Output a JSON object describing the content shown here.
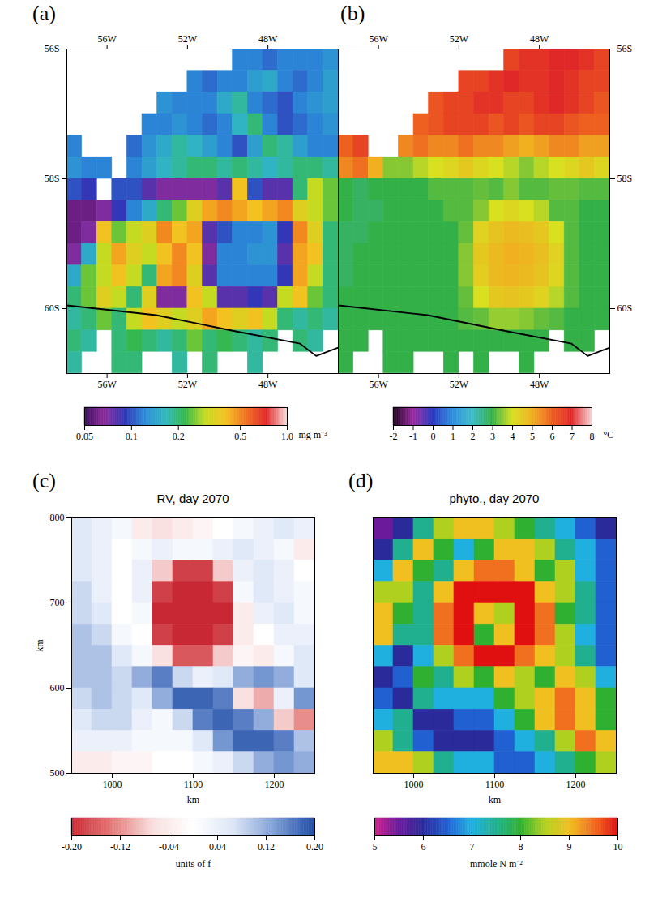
{
  "chart_data": [
    {
      "type": "heatmap",
      "panel_label": "(a)",
      "x": [
        -57.625,
        -56.875,
        -56.125,
        -55.375,
        -54.625,
        -53.875,
        -53.125,
        -52.375,
        -51.625,
        -50.875,
        -50.125,
        -49.375,
        -48.625,
        -47.875,
        -47.125,
        -46.375,
        -45.625,
        -44.875
      ],
      "y": [
        -56.17,
        -56.5,
        -56.83,
        -57.17,
        -57.5,
        -57.83,
        -58.17,
        -58.5,
        -58.83,
        -59.17,
        -59.5,
        -59.83,
        -60.17,
        -60.5,
        -60.83
      ],
      "values": [
        [
          null,
          null,
          null,
          null,
          null,
          null,
          null,
          null,
          null,
          null,
          null,
          0.12,
          0.12,
          0.11,
          0.12,
          0.12,
          0.12,
          0.13
        ],
        [
          null,
          null,
          null,
          null,
          null,
          null,
          null,
          null,
          0.12,
          0.11,
          0.12,
          0.12,
          0.14,
          0.15,
          0.12,
          0.11,
          0.12,
          0.14
        ],
        [
          null,
          null,
          null,
          null,
          null,
          null,
          0.13,
          0.12,
          0.12,
          0.12,
          0.15,
          0.18,
          0.12,
          0.11,
          0.1,
          0.12,
          0.13,
          0.14
        ],
        [
          null,
          null,
          null,
          null,
          null,
          0.12,
          0.12,
          0.13,
          0.12,
          0.11,
          0.12,
          0.16,
          0.2,
          0.12,
          0.1,
          0.11,
          0.12,
          0.13
        ],
        [
          0.12,
          null,
          null,
          null,
          0.11,
          0.13,
          0.15,
          0.18,
          0.16,
          0.14,
          0.12,
          0.1,
          0.14,
          0.2,
          0.18,
          0.14,
          0.12,
          0.12
        ],
        [
          0.13,
          0.12,
          0.12,
          null,
          0.12,
          0.14,
          0.16,
          0.18,
          0.2,
          0.2,
          0.18,
          0.2,
          0.18,
          0.16,
          0.18,
          0.2,
          0.2,
          0.18
        ],
        [
          0.1,
          0.09,
          null,
          0.1,
          0.1,
          0.08,
          0.07,
          0.07,
          0.07,
          0.07,
          0.08,
          0.4,
          0.1,
          0.08,
          0.08,
          0.2,
          0.3,
          0.25
        ],
        [
          0.06,
          0.06,
          0.07,
          0.09,
          0.12,
          0.15,
          0.2,
          0.25,
          0.35,
          0.45,
          0.5,
          0.45,
          0.4,
          0.45,
          0.5,
          0.35,
          0.3,
          0.25
        ],
        [
          0.06,
          0.07,
          0.4,
          0.25,
          0.3,
          0.35,
          0.5,
          0.4,
          0.45,
          0.08,
          0.1,
          0.12,
          0.12,
          0.13,
          0.09,
          0.5,
          0.35,
          0.2
        ],
        [
          0.07,
          0.15,
          0.3,
          0.45,
          0.35,
          0.3,
          0.4,
          0.5,
          0.4,
          0.07,
          0.12,
          0.12,
          0.13,
          0.13,
          0.08,
          0.45,
          0.4,
          0.2
        ],
        [
          0.15,
          0.25,
          0.3,
          0.4,
          0.3,
          0.2,
          0.45,
          0.5,
          0.35,
          0.08,
          0.12,
          0.12,
          0.12,
          0.12,
          0.09,
          0.45,
          0.3,
          0.2
        ],
        [
          0.2,
          0.25,
          0.35,
          0.3,
          0.2,
          0.35,
          0.07,
          0.07,
          0.4,
          0.3,
          0.08,
          0.08,
          0.09,
          0.08,
          0.3,
          0.4,
          0.25,
          0.2
        ],
        [
          0.18,
          0.2,
          0.25,
          0.2,
          0.3,
          0.4,
          0.35,
          0.3,
          0.35,
          0.45,
          0.4,
          0.35,
          0.4,
          0.3,
          0.2,
          0.18,
          0.2,
          0.18
        ],
        [
          0.2,
          0.18,
          null,
          0.2,
          0.22,
          0.2,
          0.18,
          0.2,
          0.25,
          0.2,
          0.22,
          0.2,
          0.18,
          0.2,
          null,
          0.2,
          0.18,
          null
        ],
        [
          0.18,
          null,
          null,
          0.2,
          0.2,
          null,
          null,
          0.18,
          null,
          0.2,
          null,
          null,
          0.18,
          null,
          null,
          null,
          null,
          null
        ]
      ],
      "xlim": [
        -58,
        -44.5
      ],
      "ylim": [
        -61,
        -56
      ],
      "xticks": [
        {
          "value": -56,
          "label": "56W"
        },
        {
          "value": -52,
          "label": "52W"
        },
        {
          "value": -48,
          "label": "48W"
        }
      ],
      "yticks": [
        {
          "value": -56,
          "label": "56S"
        },
        {
          "value": -58,
          "label": "58S"
        },
        {
          "value": -60,
          "label": "60S"
        }
      ],
      "line": {
        "x": [
          -58,
          -53.56,
          -49.6,
          -46.4,
          -45.6,
          -44.5
        ],
        "y": [
          -59.95,
          -60.1,
          -60.35,
          -60.54,
          -60.73,
          -60.6
        ],
        "color": "black"
      },
      "colorbar": {
        "range": [
          0.05,
          1
        ],
        "log": true,
        "label": "mg m⁻³",
        "ticks": [
          0.05,
          0.1,
          0.2,
          0.5,
          {
            "value": 1,
            "label": "1.0"
          }
        ]
      }
    },
    {
      "type": "heatmap",
      "panel_label": "(b)",
      "x": [
        -57.625,
        -56.875,
        -56.125,
        -55.375,
        -54.625,
        -53.875,
        -53.125,
        -52.375,
        -51.625,
        -50.875,
        -50.125,
        -49.375,
        -48.625,
        -47.875,
        -47.125,
        -46.375,
        -45.625,
        -44.875
      ],
      "y": [
        -56.17,
        -56.5,
        -56.83,
        -57.17,
        -57.5,
        -57.83,
        -58.17,
        -58.5,
        -58.83,
        -59.17,
        -59.5,
        -59.83,
        -60.17,
        -60.5,
        -60.83
      ],
      "values": [
        [
          null,
          null,
          null,
          null,
          null,
          null,
          null,
          null,
          null,
          null,
          null,
          6.5,
          6.8,
          6.8,
          7,
          7,
          6.8,
          6.5
        ],
        [
          null,
          null,
          null,
          null,
          null,
          null,
          null,
          null,
          6.5,
          6.5,
          6.8,
          7,
          6.8,
          6.8,
          7,
          6.8,
          6.5,
          6.5
        ],
        [
          null,
          null,
          null,
          null,
          null,
          null,
          6.2,
          6.5,
          6.5,
          6.8,
          6.8,
          6.5,
          6.5,
          6.8,
          7,
          6.8,
          6.5,
          6.2
        ],
        [
          null,
          null,
          null,
          null,
          null,
          6,
          6.2,
          6.5,
          6.5,
          6.5,
          6.2,
          6.5,
          6.2,
          6.5,
          6.5,
          6.2,
          6,
          6
        ],
        [
          6,
          6.5,
          null,
          null,
          5.5,
          5.8,
          5.5,
          5.5,
          5.8,
          5.5,
          5.5,
          5.2,
          5,
          5.2,
          5.5,
          5.5,
          5.2,
          5.2
        ],
        [
          5.5,
          5.8,
          5,
          3.5,
          3.5,
          3.8,
          4,
          4.2,
          4.5,
          4.2,
          4,
          3.8,
          3.5,
          3.8,
          4,
          4.2,
          4.5,
          4.2
        ],
        [
          3,
          2.8,
          3,
          3,
          3,
          3,
          3.2,
          3.2,
          3.2,
          3.3,
          3.2,
          3.5,
          3.2,
          3.2,
          3.3,
          3.3,
          3.2,
          3.2
        ],
        [
          3,
          2.8,
          2.8,
          3,
          3,
          3,
          3,
          3.2,
          3.2,
          3.5,
          4,
          4.2,
          4,
          3.8,
          3.2,
          3.2,
          3,
          3
        ],
        [
          2.8,
          2.8,
          3,
          3,
          3,
          3,
          3,
          3,
          3.3,
          4.3,
          4.6,
          4.8,
          4.7,
          4.5,
          4,
          3.2,
          3,
          3
        ],
        [
          2.8,
          3,
          3,
          3,
          3,
          3,
          3,
          3,
          3.5,
          4.5,
          4.8,
          5,
          4.9,
          4.7,
          4.3,
          3.2,
          3,
          3
        ],
        [
          2.8,
          3,
          3,
          3,
          3,
          3,
          3,
          3,
          3.5,
          4.4,
          4.8,
          4.9,
          4.8,
          4.6,
          4.2,
          3.2,
          3,
          3
        ],
        [
          3,
          3,
          3,
          3,
          3,
          3,
          3,
          3,
          3.3,
          4,
          4.5,
          4.6,
          4.5,
          4.3,
          3.8,
          3.2,
          3,
          3
        ],
        [
          3,
          3,
          3,
          3,
          3,
          3,
          3,
          3,
          3.2,
          3.3,
          3.6,
          3.6,
          3.5,
          3.3,
          3.2,
          3,
          3,
          3
        ],
        [
          3,
          3,
          null,
          3,
          3,
          3,
          3,
          3,
          3,
          3,
          3,
          3,
          3,
          3,
          null,
          3,
          3,
          null
        ],
        [
          3,
          null,
          null,
          3,
          3,
          null,
          null,
          3,
          null,
          3,
          null,
          null,
          3,
          null,
          null,
          null,
          null,
          null
        ]
      ],
      "xlim": [
        -58,
        -44.5
      ],
      "ylim": [
        -61,
        -56
      ],
      "xticks": [
        {
          "value": -56,
          "label": "56W"
        },
        {
          "value": -52,
          "label": "52W"
        },
        {
          "value": -48,
          "label": "48W"
        }
      ],
      "yticks": [
        {
          "value": -56,
          "label": "56S"
        },
        {
          "value": -58,
          "label": "58S"
        },
        {
          "value": -60,
          "label": "60S"
        }
      ],
      "line": {
        "x": [
          -58,
          -53.56,
          -49.6,
          -46.4,
          -45.6,
          -44.5
        ],
        "y": [
          -59.95,
          -60.1,
          -60.35,
          -60.54,
          -60.73,
          -60.6
        ],
        "color": "black"
      },
      "colorbar": {
        "range": [
          -2,
          8
        ],
        "label": "°C",
        "ticks": [
          -2,
          -1,
          0,
          1,
          2,
          3,
          4,
          5,
          6,
          7,
          8
        ]
      }
    },
    {
      "type": "heatmap",
      "panel_label": "(c)",
      "title": "RV, day 2070",
      "xlabel": "km",
      "ylabel": "km",
      "x": [
        962.5,
        987.5,
        1012.5,
        1037.5,
        1062.5,
        1087.5,
        1112.5,
        1137.5,
        1162.5,
        1187.5,
        1212.5,
        1237.5
      ],
      "y": [
        787.5,
        762.5,
        737.5,
        712.5,
        687.5,
        662.5,
        637.5,
        612.5,
        587.5,
        562.5,
        537.5,
        512.5
      ],
      "values": [
        [
          0.06,
          0.04,
          0.02,
          -0.04,
          -0.06,
          -0.04,
          -0.02,
          0,
          0.02,
          0.04,
          0.06,
          0.04
        ],
        [
          0.06,
          0.04,
          0,
          0.02,
          0.04,
          0.02,
          0.02,
          0.04,
          0.06,
          0.04,
          0.02,
          -0.04
        ],
        [
          0.06,
          0.04,
          0,
          0.04,
          -0.08,
          -0.18,
          -0.18,
          -0.08,
          0.04,
          0.06,
          0.04,
          0
        ],
        [
          0.08,
          0.04,
          0,
          0.04,
          -0.18,
          -0.2,
          -0.2,
          -0.18,
          0.02,
          0.06,
          0.04,
          0.02
        ],
        [
          0.08,
          0.06,
          0,
          0.02,
          -0.2,
          -0.2,
          -0.2,
          -0.2,
          -0.04,
          0.04,
          0.06,
          0.02
        ],
        [
          0.1,
          0.08,
          0.02,
          0,
          -0.18,
          -0.2,
          -0.2,
          -0.18,
          -0.04,
          0,
          0.04,
          0.04
        ],
        [
          0.1,
          0.1,
          0.06,
          0.02,
          -0.06,
          -0.16,
          -0.16,
          -0.08,
          -0.02,
          -0.04,
          0.02,
          0.06
        ],
        [
          0.1,
          0.1,
          0.08,
          0.12,
          0.16,
          0.08,
          0.04,
          0.06,
          0.12,
          0.14,
          0.12,
          0.06
        ],
        [
          0.08,
          0.1,
          0.08,
          0.06,
          0.12,
          0.18,
          0.18,
          0.16,
          -0.06,
          -0.1,
          0.04,
          0.14
        ],
        [
          0.06,
          0.08,
          0.08,
          0.04,
          0.02,
          0.08,
          0.16,
          0.18,
          0.16,
          0.12,
          -0.08,
          -0.12
        ],
        [
          0.04,
          0.04,
          0.04,
          0.02,
          0.02,
          0.02,
          0.06,
          0.14,
          0.18,
          0.18,
          0.16,
          0.1
        ],
        [
          -0.04,
          -0.04,
          -0.02,
          -0.02,
          0,
          0,
          0.02,
          0.04,
          0.08,
          0.12,
          0.14,
          0.12
        ]
      ],
      "xlim": [
        950,
        1250
      ],
      "ylim": [
        500,
        800
      ],
      "xticks": [
        1000,
        1100,
        1200
      ],
      "yticks": [
        500,
        600,
        700,
        800
      ],
      "colorbar": {
        "range": [
          -0.2,
          0.2
        ],
        "label": "units of f",
        "ticks": [
          {
            "value": -0.2,
            "label": "-0.20"
          },
          {
            "value": -0.12,
            "label": "-0.12"
          },
          {
            "value": -0.04,
            "label": "-0.04"
          },
          {
            "value": 0.04,
            "label": "0.04"
          },
          {
            "value": 0.12,
            "label": "0.12"
          },
          {
            "value": 0.2,
            "label": "0.20"
          }
        ]
      }
    },
    {
      "type": "heatmap",
      "panel_label": "(d)",
      "title": "phyto., day 2070",
      "xlabel": "km",
      "tick_labels": "x",
      "x": [
        962.5,
        987.5,
        1012.5,
        1037.5,
        1062.5,
        1087.5,
        1112.5,
        1137.5,
        1162.5,
        1187.5,
        1212.5,
        1237.5
      ],
      "y": [
        787.5,
        762.5,
        737.5,
        712.5,
        687.5,
        662.5,
        637.5,
        612.5,
        587.5,
        562.5,
        537.5,
        512.5
      ],
      "values": [
        [
          5.5,
          6,
          7.5,
          8.5,
          9,
          9,
          8.5,
          8,
          7.5,
          7,
          6.5,
          6
        ],
        [
          6,
          7.5,
          9,
          8,
          7,
          8,
          9,
          9,
          8.5,
          7.5,
          7,
          6.5
        ],
        [
          7,
          9,
          8,
          7.5,
          9,
          9.5,
          9.5,
          9,
          8,
          8.5,
          7,
          6.5
        ],
        [
          8.5,
          8.5,
          7.5,
          9,
          10,
          10,
          10,
          10,
          9,
          8.5,
          7.5,
          6.5
        ],
        [
          9,
          8,
          7.5,
          9.5,
          10,
          9,
          8.5,
          10,
          9.5,
          8,
          7.5,
          6.5
        ],
        [
          9,
          7.5,
          7.5,
          9.5,
          10,
          8,
          9,
          10,
          9.5,
          8.5,
          7,
          6.5
        ],
        [
          7,
          6,
          7,
          8.5,
          9.5,
          10,
          10,
          9.5,
          9,
          8.5,
          7.5,
          6.5
        ],
        [
          6,
          6.5,
          8,
          7.5,
          8.5,
          8,
          9,
          8.5,
          8,
          9,
          8.5,
          7
        ],
        [
          6.5,
          6,
          7.5,
          7,
          7,
          7,
          8,
          8.5,
          9,
          9.5,
          9,
          8
        ],
        [
          7,
          7.5,
          6,
          6,
          6.5,
          6.5,
          7,
          8,
          9,
          9.5,
          9,
          8
        ],
        [
          8.5,
          7.5,
          6.5,
          6,
          6,
          6,
          6.5,
          7,
          7.5,
          8.5,
          9.5,
          9
        ],
        [
          9,
          9,
          8.5,
          7.5,
          7,
          7,
          6.5,
          6.5,
          7,
          7.5,
          8,
          8.5
        ]
      ],
      "xlim": [
        950,
        1250
      ],
      "ylim": [
        500,
        800
      ],
      "xticks": [
        1000,
        1100,
        1200
      ],
      "colorbar": {
        "range": [
          5,
          10
        ],
        "label": "mmole N m⁻²",
        "ticks": [
          5,
          6,
          7,
          8,
          9,
          10
        ]
      }
    }
  ]
}
